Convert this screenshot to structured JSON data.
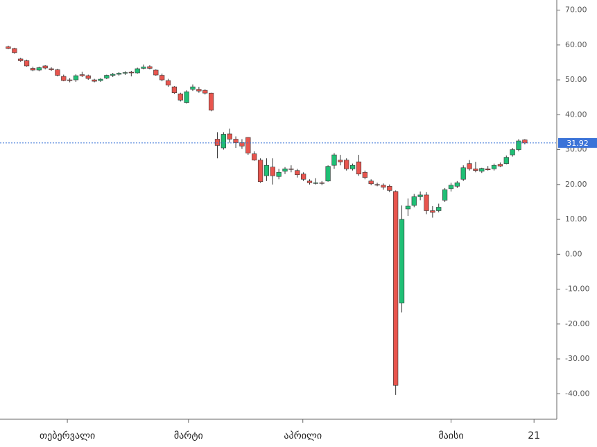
{
  "chart_data": {
    "type": "candlestick",
    "candles": [
      [
        59.5,
        59.8,
        58.8,
        59.0
      ],
      [
        59.0,
        59.2,
        57.5,
        57.8
      ],
      [
        56.0,
        56.3,
        55.2,
        55.5
      ],
      [
        55.5,
        55.8,
        53.8,
        54.0
      ],
      [
        53.3,
        53.8,
        52.5,
        52.8
      ],
      [
        52.8,
        53.8,
        52.5,
        53.5
      ],
      [
        54.0,
        54.2,
        53.0,
        53.4
      ],
      [
        53.2,
        53.6,
        52.6,
        52.9
      ],
      [
        52.9,
        53.2,
        51.0,
        51.3
      ],
      [
        51.0,
        51.5,
        49.6,
        49.8
      ],
      [
        50.0,
        50.5,
        49.3,
        49.8
      ],
      [
        50.0,
        51.6,
        49.4,
        51.2
      ],
      [
        51.5,
        52.3,
        50.8,
        51.2
      ],
      [
        51.2,
        51.5,
        50.0,
        50.4
      ],
      [
        50.0,
        50.3,
        49.3,
        49.6
      ],
      [
        49.8,
        50.5,
        49.4,
        50.2
      ],
      [
        50.5,
        51.5,
        50.2,
        51.3
      ],
      [
        51.3,
        52.0,
        50.8,
        51.6
      ],
      [
        51.6,
        52.2,
        51.2,
        51.9
      ],
      [
        52.0,
        52.5,
        51.4,
        52.1
      ],
      [
        52.2,
        52.6,
        51.0,
        52.1
      ],
      [
        52.0,
        53.5,
        51.8,
        53.2
      ],
      [
        53.3,
        54.4,
        53.0,
        53.7
      ],
      [
        53.8,
        54.2,
        53.0,
        53.3
      ],
      [
        52.8,
        53.0,
        51.2,
        51.4
      ],
      [
        51.3,
        51.8,
        49.6,
        50.0
      ],
      [
        49.8,
        50.3,
        48.0,
        48.5
      ],
      [
        48.0,
        48.2,
        46.0,
        46.3
      ],
      [
        46.0,
        46.3,
        43.8,
        44.2
      ],
      [
        43.5,
        47.0,
        43.2,
        46.6
      ],
      [
        47.3,
        48.7,
        46.8,
        48.0
      ],
      [
        47.3,
        48.0,
        46.3,
        46.8
      ],
      [
        47.0,
        47.3,
        45.8,
        46.2
      ],
      [
        46.2,
        46.3,
        41.0,
        41.3
      ],
      [
        33.0,
        35.0,
        27.5,
        31.2
      ],
      [
        30.5,
        35.0,
        30.0,
        34.4
      ],
      [
        34.5,
        36.0,
        32.0,
        33.0
      ],
      [
        33.0,
        33.8,
        30.5,
        32.0
      ],
      [
        32.0,
        33.0,
        30.2,
        31.0
      ],
      [
        33.5,
        33.6,
        28.5,
        29.0
      ],
      [
        28.8,
        29.5,
        26.8,
        27.0
      ],
      [
        27.0,
        27.5,
        20.5,
        20.8
      ],
      [
        22.5,
        27.5,
        21.0,
        25.5
      ],
      [
        25.0,
        27.5,
        20.0,
        22.5
      ],
      [
        22.3,
        24.5,
        21.5,
        23.5
      ],
      [
        23.8,
        25.0,
        23.0,
        24.5
      ],
      [
        24.5,
        25.5,
        23.5,
        24.3
      ],
      [
        24.0,
        24.5,
        22.0,
        22.8
      ],
      [
        23.0,
        23.5,
        21.0,
        21.5
      ],
      [
        21.0,
        21.5,
        20.0,
        20.5
      ],
      [
        20.3,
        21.8,
        20.0,
        20.5
      ],
      [
        20.5,
        21.0,
        19.8,
        20.4
      ],
      [
        21.0,
        25.5,
        20.8,
        25.2
      ],
      [
        25.5,
        29.0,
        24.5,
        28.5
      ],
      [
        27.0,
        28.5,
        25.5,
        26.5
      ],
      [
        27.0,
        27.5,
        24.0,
        24.5
      ],
      [
        24.5,
        26.0,
        24.0,
        25.5
      ],
      [
        26.5,
        28.5,
        22.5,
        23.0
      ],
      [
        23.5,
        24.0,
        21.5,
        22.0
      ],
      [
        21.0,
        21.5,
        19.8,
        20.2
      ],
      [
        20.0,
        20.5,
        19.5,
        19.8
      ],
      [
        19.8,
        20.3,
        18.5,
        19.2
      ],
      [
        19.5,
        20.0,
        17.8,
        18.3
      ],
      [
        18.0,
        18.3,
        -40.3,
        -37.6
      ],
      [
        -14.0,
        14.0,
        -16.7,
        10.0
      ],
      [
        13.0,
        16.0,
        11.0,
        13.8
      ],
      [
        14.0,
        17.3,
        13.5,
        16.5
      ],
      [
        16.5,
        18.0,
        15.5,
        17.0
      ],
      [
        17.0,
        17.8,
        11.5,
        12.5
      ],
      [
        12.5,
        13.8,
        10.5,
        12.0
      ],
      [
        12.5,
        14.5,
        12.0,
        13.5
      ],
      [
        15.5,
        19.0,
        15.0,
        18.5
      ],
      [
        18.8,
        20.5,
        18.0,
        19.8
      ],
      [
        19.5,
        21.0,
        19.0,
        20.5
      ],
      [
        21.5,
        25.5,
        21.0,
        24.8
      ],
      [
        26.0,
        27.0,
        24.0,
        24.5
      ],
      [
        24.5,
        26.5,
        23.5,
        24.0
      ],
      [
        23.8,
        24.8,
        23.3,
        24.6
      ],
      [
        24.5,
        25.3,
        24.0,
        24.2
      ],
      [
        24.5,
        26.0,
        24.0,
        25.5
      ],
      [
        25.8,
        26.3,
        25.0,
        25.3
      ],
      [
        26.0,
        28.3,
        25.8,
        27.8
      ],
      [
        28.5,
        30.5,
        28.0,
        30.0
      ],
      [
        30.0,
        33.0,
        29.5,
        32.5
      ],
      [
        32.8,
        33.0,
        31.5,
        31.92
      ]
    ],
    "up_color": "#1fbf75",
    "down_color": "#e8554e",
    "last_price": 31.92,
    "last_price_color": "#3b73d8",
    "xlim": [
      -1.35,
      89.2
    ],
    "xticks": [
      {
        "value": 9.6,
        "label": "თებერვალი"
      },
      {
        "value": 29.3,
        "label": "მარტი"
      },
      {
        "value": 47.9,
        "label": "აპრილი"
      },
      {
        "value": 72,
        "label": "მაისი"
      },
      {
        "value": 85.5,
        "label": "21"
      }
    ],
    "ylim": [
      -47.3,
      72.9
    ],
    "yticks": [
      {
        "value": 70,
        "label": "70.00"
      },
      {
        "value": 60,
        "label": "60.00"
      },
      {
        "value": 50,
        "label": "50.00"
      },
      {
        "value": 40,
        "label": "40.00"
      },
      {
        "value": 30,
        "label": "30.00"
      },
      {
        "value": 20,
        "label": "20.00"
      },
      {
        "value": 10,
        "label": "10.00"
      },
      {
        "value": 0,
        "label": "0.00"
      },
      {
        "value": -10,
        "label": "-10.00"
      },
      {
        "value": -20,
        "label": "-20.00"
      },
      {
        "value": -30,
        "label": "-30.00"
      },
      {
        "value": -40,
        "label": "-40.00"
      }
    ]
  }
}
